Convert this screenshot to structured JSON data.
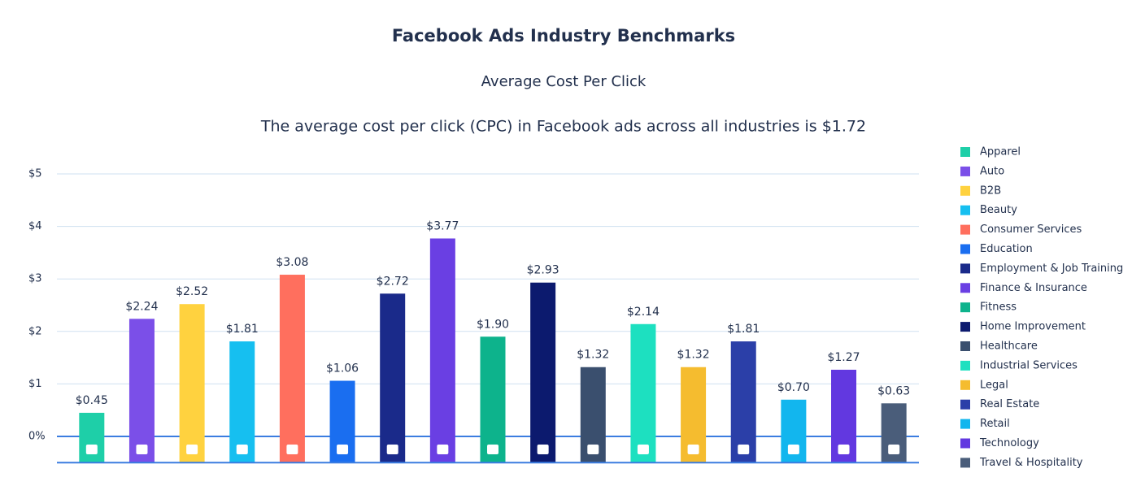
{
  "chart_data": {
    "type": "bar",
    "title": "Facebook Ads Industry Benchmarks",
    "subtitle": "Average Cost Per Click",
    "annotation": "The average cost per click (CPC) in Facebook ads across all industries is $1.72",
    "categories": [
      "Apparel",
      "Auto",
      "B2B",
      "Beauty",
      "Consumer Services",
      "Education",
      "Employment & Job Training",
      "Finance & Insurance",
      "Fitness",
      "Home Improvement",
      "Healthcare",
      "Industrial Services",
      "Legal",
      "Real Estate",
      "Retail",
      "Technology",
      "Travel & Hospitality"
    ],
    "values": [
      0.45,
      2.24,
      2.52,
      1.81,
      3.08,
      1.06,
      2.72,
      3.77,
      1.9,
      2.93,
      1.32,
      2.14,
      1.32,
      1.81,
      0.7,
      1.27,
      0.63
    ],
    "value_labels": [
      "$0.45",
      "$2.24",
      "$2.52",
      "$1.81",
      "$3.08",
      "$1.06",
      "$2.72",
      "$3.77",
      "$1.90",
      "$2.93",
      "$1.32",
      "$2.14",
      "$1.32",
      "$1.81",
      "$0.70",
      "$1.27",
      "$0.63"
    ],
    "colors": [
      "#1ecfa8",
      "#7b4fe8",
      "#ffd23f",
      "#16bff0",
      "#ff6f5e",
      "#1a6ef0",
      "#1a2a8a",
      "#6a3fe3",
      "#0db38c",
      "#0c1a6e",
      "#3a4f6e",
      "#1de0c0",
      "#f5bc2f",
      "#2b3fa8",
      "#12b6ee",
      "#6238e0",
      "#4a5d7a"
    ],
    "ylim": [
      -0.5,
      5
    ],
    "yticks": [
      {
        "value": 0,
        "label": "0%"
      },
      {
        "value": 1,
        "label": "$1"
      },
      {
        "value": 2,
        "label": "$2"
      },
      {
        "value": 3,
        "label": "$3"
      },
      {
        "value": 4,
        "label": "$4"
      },
      {
        "value": 5,
        "label": "$5"
      }
    ],
    "grid": true,
    "legend": "right"
  }
}
